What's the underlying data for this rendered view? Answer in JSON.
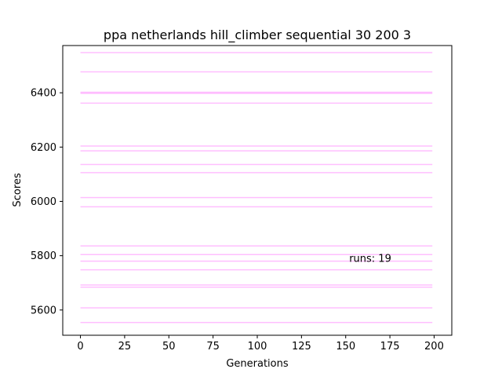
{
  "chart_data": {
    "type": "line",
    "title": "ppa netherlands hill_climber sequential 30 200 3",
    "xlabel": "Generations",
    "ylabel": "Scores",
    "xlim": [
      -10,
      210
    ],
    "ylim": [
      5507,
      6574
    ],
    "xticks": [
      0,
      25,
      50,
      75,
      100,
      125,
      150,
      175,
      200
    ],
    "yticks": [
      5600,
      5800,
      6000,
      6200,
      6400
    ],
    "annotation": "runs: 19",
    "annotation_pos": {
      "x": 152,
      "y": 5778
    },
    "grid": false,
    "line_color": "#ff00ff",
    "line_alpha": 0.25,
    "series": [
      {
        "x": [
          0,
          199
        ],
        "values": [
          6548,
          6548
        ]
      },
      {
        "x": [
          0,
          199
        ],
        "values": [
          6477,
          6477
        ]
      },
      {
        "x": [
          0,
          199
        ],
        "values": [
          6402,
          6402
        ]
      },
      {
        "x": [
          0,
          199
        ],
        "values": [
          6398,
          6398
        ]
      },
      {
        "x": [
          0,
          199
        ],
        "values": [
          6362,
          6362
        ]
      },
      {
        "x": [
          0,
          199
        ],
        "values": [
          6204,
          6204
        ]
      },
      {
        "x": [
          0,
          199
        ],
        "values": [
          6186,
          6186
        ]
      },
      {
        "x": [
          0,
          199
        ],
        "values": [
          6136,
          6136
        ]
      },
      {
        "x": [
          0,
          199
        ],
        "values": [
          6106,
          6106
        ]
      },
      {
        "x": [
          0,
          199
        ],
        "values": [
          6014,
          6014
        ]
      },
      {
        "x": [
          0,
          199
        ],
        "values": [
          5980,
          5980
        ]
      },
      {
        "x": [
          0,
          199
        ],
        "values": [
          5836,
          5836
        ]
      },
      {
        "x": [
          0,
          199
        ],
        "values": [
          5804,
          5804
        ]
      },
      {
        "x": [
          0,
          199
        ],
        "values": [
          5780,
          5780
        ]
      },
      {
        "x": [
          0,
          199
        ],
        "values": [
          5748,
          5748
        ]
      },
      {
        "x": [
          0,
          199
        ],
        "values": [
          5692,
          5692
        ]
      },
      {
        "x": [
          0,
          199
        ],
        "values": [
          5684,
          5684
        ]
      },
      {
        "x": [
          0,
          199
        ],
        "values": [
          5608,
          5608
        ]
      },
      {
        "x": [
          0,
          199
        ],
        "values": [
          5554,
          5554
        ]
      }
    ]
  }
}
